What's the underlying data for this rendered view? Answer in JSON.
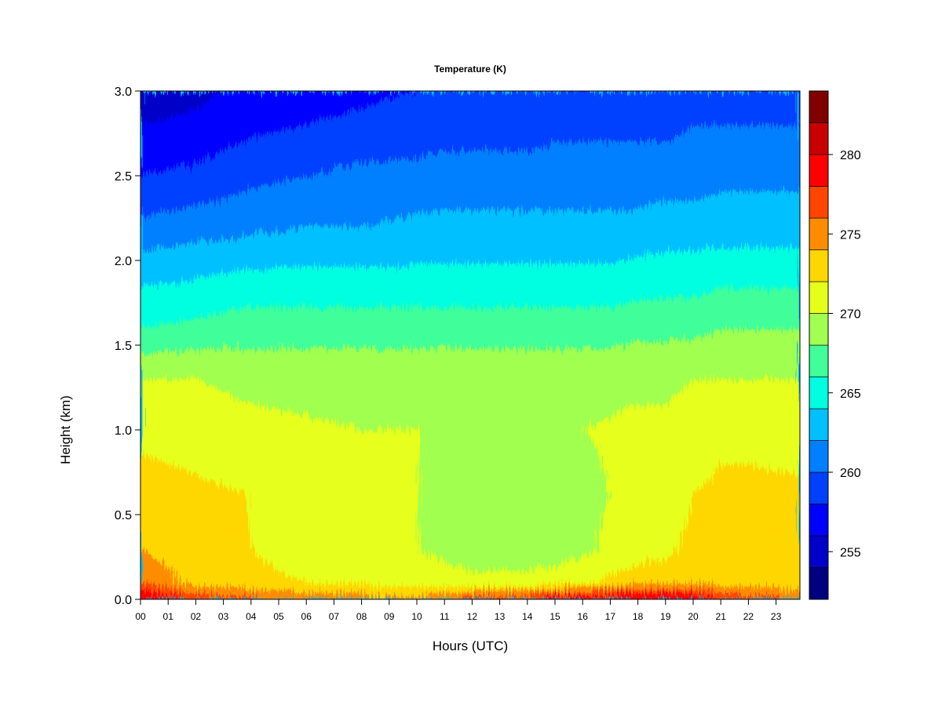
{
  "chart_data": {
    "type": "heatmap",
    "title": "Temperature (K)",
    "xlabel": "Hours (UTC)",
    "ylabel": "Height (km)",
    "x_ticks": [
      "00",
      "01",
      "02",
      "03",
      "04",
      "05",
      "06",
      "07",
      "08",
      "09",
      "10",
      "11",
      "12",
      "13",
      "14",
      "15",
      "16",
      "17",
      "18",
      "19",
      "20",
      "21",
      "22",
      "23"
    ],
    "xlim": [
      0,
      23.9
    ],
    "y_ticks": [
      0.0,
      0.5,
      1.0,
      1.5,
      2.0,
      2.5,
      3.0
    ],
    "y_tick_labels": [
      "0.0",
      "0.5",
      "1.0",
      "1.5",
      "2.0",
      "2.5",
      "3.0"
    ],
    "ylim": [
      0,
      3.0
    ],
    "colorbar": {
      "levels": [
        252,
        254,
        256,
        258,
        260,
        262,
        264,
        266,
        268,
        270,
        272,
        274,
        276,
        278,
        280,
        282,
        284
      ],
      "colors": [
        "#000080",
        "#0000c8",
        "#0000ff",
        "#0040ff",
        "#0080ff",
        "#00c0ff",
        "#00ffe0",
        "#40ff9a",
        "#a0ff50",
        "#e6ff1a",
        "#ffd700",
        "#ff8c00",
        "#ff4500",
        "#ff0000",
        "#c80000",
        "#800000"
      ],
      "tick_values": [
        255,
        260,
        265,
        270,
        275,
        280
      ],
      "tick_labels": [
        "255",
        "260",
        "265",
        "270",
        "275",
        "280"
      ]
    },
    "temperature_profile": {
      "heights_km": [
        0.0,
        0.1,
        0.3,
        0.6,
        1.0,
        1.3,
        1.6,
        1.9,
        2.2,
        2.5,
        2.8,
        3.0
      ],
      "hours": [
        0,
        2,
        4,
        6,
        8,
        10,
        11,
        12,
        13,
        14,
        15,
        16,
        17,
        18,
        19,
        20,
        21,
        22,
        23.9
      ],
      "values_K": [
        [
          280.5,
          277.5,
          276.5,
          275.5,
          275.0,
          274.5,
          276.0,
          277.0,
          277.5,
          278.0,
          279.0,
          279.5,
          280.0,
          280.5,
          280.5,
          280.0,
          278.0,
          277.0,
          276.0
        ],
        [
          276.0,
          273.0,
          272.5,
          272.0,
          271.5,
          271.0,
          271.0,
          270.5,
          270.5,
          270.5,
          271.0,
          271.5,
          272.5,
          273.0,
          273.0,
          273.5,
          273.0,
          273.0,
          272.5
        ],
        [
          274.0,
          272.5,
          272.0,
          271.0,
          270.5,
          270.0,
          269.5,
          269.0,
          269.0,
          269.0,
          269.0,
          269.5,
          270.5,
          271.0,
          271.5,
          272.5,
          272.5,
          272.5,
          272.5
        ],
        [
          273.0,
          272.5,
          272.0,
          271.0,
          270.5,
          270.0,
          269.8,
          269.5,
          269.0,
          269.0,
          269.0,
          269.5,
          270.0,
          270.5,
          271.0,
          272.0,
          272.5,
          272.5,
          272.5
        ],
        [
          271.5,
          271.0,
          270.5,
          270.2,
          270.0,
          270.0,
          269.8,
          269.5,
          269.5,
          269.5,
          269.8,
          270.0,
          270.2,
          270.5,
          270.5,
          271.0,
          271.5,
          271.5,
          271.0
        ],
        [
          270.0,
          270.0,
          269.5,
          269.5,
          269.5,
          269.5,
          269.5,
          269.5,
          269.5,
          269.5,
          269.5,
          269.5,
          269.5,
          269.5,
          269.5,
          270.0,
          270.0,
          270.0,
          270.0
        ],
        [
          266.0,
          266.5,
          267.0,
          267.0,
          267.0,
          267.0,
          267.0,
          267.0,
          267.0,
          267.0,
          267.0,
          267.0,
          267.0,
          267.5,
          267.5,
          267.5,
          268.0,
          268.0,
          268.0
        ],
        [
          263.5,
          264.0,
          264.5,
          264.5,
          264.5,
          264.5,
          264.5,
          264.5,
          264.5,
          264.5,
          264.5,
          264.5,
          264.5,
          265.0,
          265.0,
          265.0,
          265.5,
          265.5,
          265.5
        ],
        [
          260.5,
          261.0,
          261.5,
          262.0,
          262.0,
          262.5,
          262.5,
          262.5,
          262.5,
          262.5,
          262.5,
          262.5,
          262.5,
          262.5,
          263.0,
          263.0,
          263.0,
          263.0,
          263.0
        ],
        [
          258.0,
          258.5,
          259.5,
          260.0,
          260.5,
          260.5,
          261.0,
          261.0,
          261.0,
          261.0,
          261.0,
          261.0,
          261.0,
          261.0,
          261.0,
          261.0,
          261.5,
          261.5,
          261.5
        ],
        [
          256.0,
          256.5,
          257.5,
          258.0,
          258.5,
          259.0,
          259.0,
          259.0,
          259.0,
          259.0,
          259.5,
          259.5,
          259.5,
          259.5,
          259.5,
          260.0,
          260.0,
          260.0,
          260.0
        ],
        [
          254.5,
          255.5,
          256.5,
          257.0,
          257.5,
          258.0,
          258.0,
          258.0,
          258.0,
          258.0,
          258.5,
          258.5,
          258.5,
          258.5,
          259.0,
          259.0,
          259.0,
          259.5,
          259.5
        ]
      ]
    }
  }
}
